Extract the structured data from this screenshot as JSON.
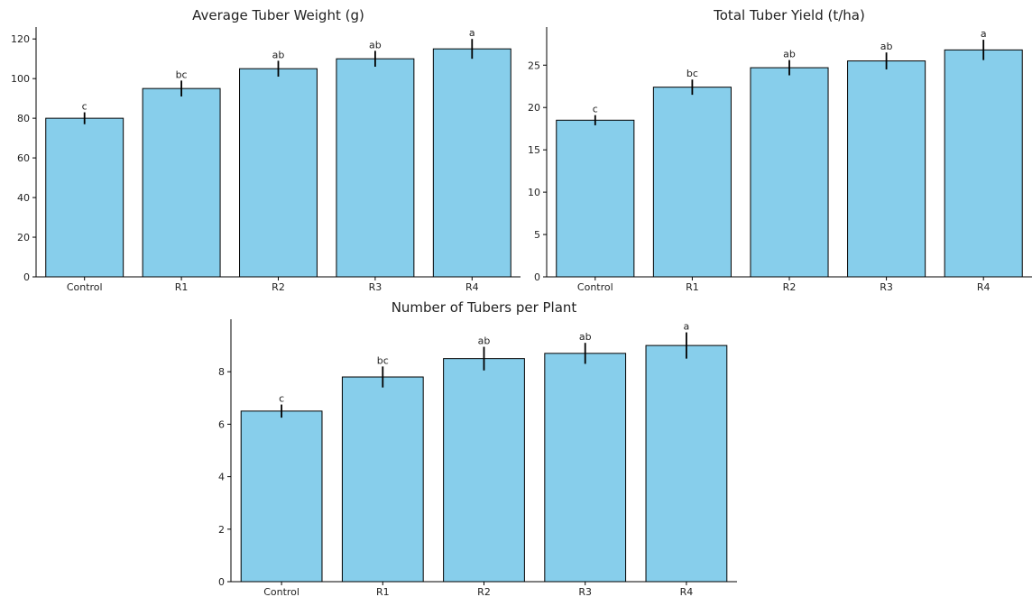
{
  "chart_data": [
    {
      "type": "bar",
      "title": "Average Tuber Weight (g)",
      "categories": [
        "Control",
        "R1",
        "R2",
        "R3",
        "R4"
      ],
      "values": [
        80,
        95,
        105,
        110,
        115
      ],
      "errors": [
        3,
        4,
        4,
        4,
        5
      ],
      "significance": [
        "c",
        "bc",
        "ab",
        "ab",
        "a"
      ],
      "ylim": [
        0,
        126
      ],
      "yticks": [
        0,
        20,
        40,
        60,
        80,
        100,
        120
      ],
      "xlabel": "",
      "ylabel": "",
      "grid": false,
      "bar_color": "#87CEEB",
      "edge_color": "#000000"
    },
    {
      "type": "bar",
      "title": "Total Tuber Yield (t/ha)",
      "categories": [
        "Control",
        "R1",
        "R2",
        "R3",
        "R4"
      ],
      "values": [
        18.5,
        22.4,
        24.7,
        25.5,
        26.8
      ],
      "errors": [
        0.6,
        0.9,
        0.9,
        1.0,
        1.2
      ],
      "significance": [
        "c",
        "bc",
        "ab",
        "ab",
        "a"
      ],
      "ylim": [
        0,
        29.5
      ],
      "yticks": [
        0,
        5,
        10,
        15,
        20,
        25
      ],
      "xlabel": "",
      "ylabel": "",
      "grid": false,
      "bar_color": "#87CEEB",
      "edge_color": "#000000"
    },
    {
      "type": "bar",
      "title": "Number of Tubers per Plant",
      "categories": [
        "Control",
        "R1",
        "R2",
        "R3",
        "R4"
      ],
      "values": [
        6.5,
        7.8,
        8.5,
        8.7,
        9.0
      ],
      "errors": [
        0.25,
        0.4,
        0.45,
        0.4,
        0.5
      ],
      "significance": [
        "c",
        "bc",
        "ab",
        "ab",
        "a"
      ],
      "ylim": [
        0,
        10
      ],
      "yticks": [
        0,
        2,
        4,
        6,
        8
      ],
      "xlabel": "",
      "ylabel": "",
      "grid": false,
      "bar_color": "#87CEEB",
      "edge_color": "#000000"
    }
  ]
}
